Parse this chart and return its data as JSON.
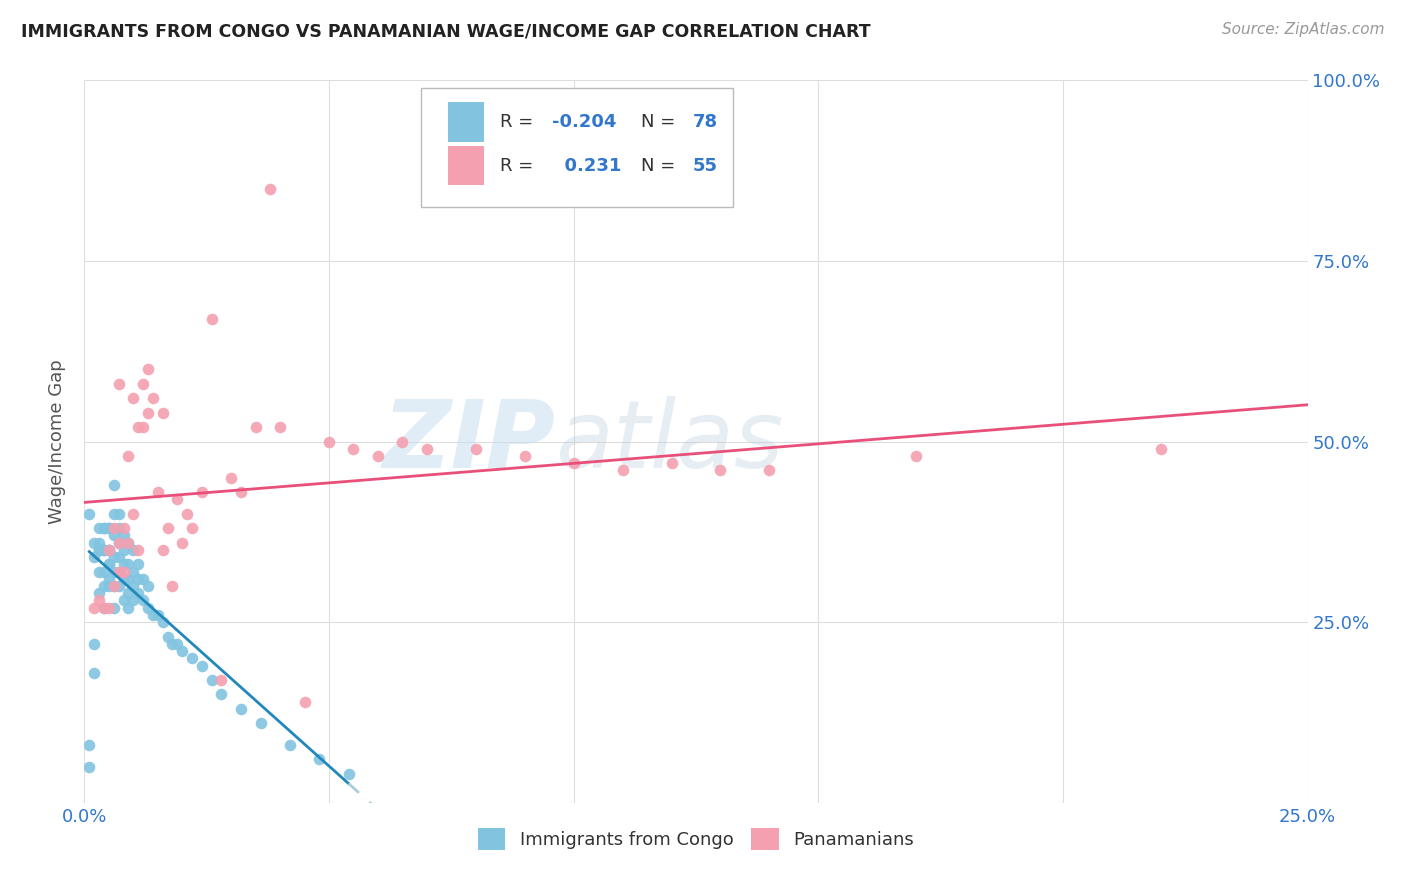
{
  "title": "IMMIGRANTS FROM CONGO VS PANAMANIAN WAGE/INCOME GAP CORRELATION CHART",
  "source": "Source: ZipAtlas.com",
  "ylabel": "Wage/Income Gap",
  "xlim": [
    0.0,
    0.25
  ],
  "ylim": [
    0.0,
    1.0
  ],
  "xtick_pos": [
    0.0,
    0.05,
    0.1,
    0.15,
    0.2,
    0.25
  ],
  "xtick_labels": [
    "0.0%",
    "",
    "",
    "",
    "",
    "25.0%"
  ],
  "ytick_labels_right": [
    "100.0%",
    "75.0%",
    "50.0%",
    "25.0%"
  ],
  "ytick_positions_right": [
    1.0,
    0.75,
    0.5,
    0.25
  ],
  "background_color": "#ffffff",
  "grid_color": "#dddddd",
  "title_color": "#222222",
  "source_color": "#999999",
  "blue_color": "#82c4e0",
  "pink_color": "#f4a0b0",
  "blue_line_color": "#2288bb",
  "pink_line_color": "#e8507a",
  "blue_dashed_color": "#aaccdd",
  "right_label_color": "#3377cc",
  "legend_R1": "-0.204",
  "legend_N1": "78",
  "legend_R2": "0.231",
  "legend_N2": "55",
  "congo_x": [
    0.001,
    0.001,
    0.002,
    0.002,
    0.002,
    0.003,
    0.003,
    0.003,
    0.003,
    0.003,
    0.004,
    0.004,
    0.004,
    0.004,
    0.004,
    0.004,
    0.005,
    0.005,
    0.005,
    0.005,
    0.005,
    0.005,
    0.005,
    0.006,
    0.006,
    0.006,
    0.006,
    0.006,
    0.006,
    0.006,
    0.007,
    0.007,
    0.007,
    0.007,
    0.007,
    0.007,
    0.008,
    0.008,
    0.008,
    0.008,
    0.008,
    0.009,
    0.009,
    0.009,
    0.009,
    0.009,
    0.01,
    0.01,
    0.01,
    0.01,
    0.011,
    0.011,
    0.011,
    0.012,
    0.012,
    0.013,
    0.013,
    0.014,
    0.015,
    0.016,
    0.017,
    0.018,
    0.019,
    0.02,
    0.022,
    0.024,
    0.026,
    0.028,
    0.032,
    0.036,
    0.042,
    0.048,
    0.054,
    0.001,
    0.002,
    0.003,
    0.004,
    0.005
  ],
  "congo_y": [
    0.08,
    0.05,
    0.34,
    0.22,
    0.18,
    0.36,
    0.38,
    0.35,
    0.32,
    0.29,
    0.38,
    0.35,
    0.32,
    0.3,
    0.27,
    0.35,
    0.38,
    0.35,
    0.33,
    0.31,
    0.35,
    0.33,
    0.3,
    0.44,
    0.4,
    0.37,
    0.34,
    0.32,
    0.3,
    0.27,
    0.4,
    0.38,
    0.36,
    0.34,
    0.32,
    0.3,
    0.37,
    0.35,
    0.33,
    0.31,
    0.28,
    0.36,
    0.33,
    0.31,
    0.29,
    0.27,
    0.35,
    0.32,
    0.3,
    0.28,
    0.33,
    0.31,
    0.29,
    0.31,
    0.28,
    0.3,
    0.27,
    0.26,
    0.26,
    0.25,
    0.23,
    0.22,
    0.22,
    0.21,
    0.2,
    0.19,
    0.17,
    0.15,
    0.13,
    0.11,
    0.08,
    0.06,
    0.04,
    0.4,
    0.36,
    0.35,
    0.38,
    0.38
  ],
  "panama_x": [
    0.002,
    0.003,
    0.004,
    0.005,
    0.005,
    0.006,
    0.006,
    0.007,
    0.007,
    0.007,
    0.008,
    0.008,
    0.009,
    0.009,
    0.01,
    0.01,
    0.011,
    0.011,
    0.012,
    0.012,
    0.013,
    0.013,
    0.014,
    0.015,
    0.016,
    0.016,
    0.017,
    0.018,
    0.019,
    0.02,
    0.021,
    0.022,
    0.024,
    0.026,
    0.028,
    0.03,
    0.032,
    0.035,
    0.038,
    0.04,
    0.045,
    0.05,
    0.055,
    0.06,
    0.065,
    0.07,
    0.08,
    0.09,
    0.1,
    0.11,
    0.12,
    0.13,
    0.14,
    0.17,
    0.22
  ],
  "panama_y": [
    0.27,
    0.28,
    0.27,
    0.27,
    0.35,
    0.3,
    0.38,
    0.32,
    0.36,
    0.58,
    0.32,
    0.38,
    0.36,
    0.48,
    0.4,
    0.56,
    0.35,
    0.52,
    0.58,
    0.52,
    0.54,
    0.6,
    0.56,
    0.43,
    0.35,
    0.54,
    0.38,
    0.3,
    0.42,
    0.36,
    0.4,
    0.38,
    0.43,
    0.67,
    0.17,
    0.45,
    0.43,
    0.52,
    0.85,
    0.52,
    0.14,
    0.5,
    0.49,
    0.48,
    0.5,
    0.49,
    0.49,
    0.48,
    0.47,
    0.46,
    0.47,
    0.46,
    0.46,
    0.48,
    0.49
  ],
  "watermark_zip": "ZIP",
  "watermark_atlas": "atlas"
}
